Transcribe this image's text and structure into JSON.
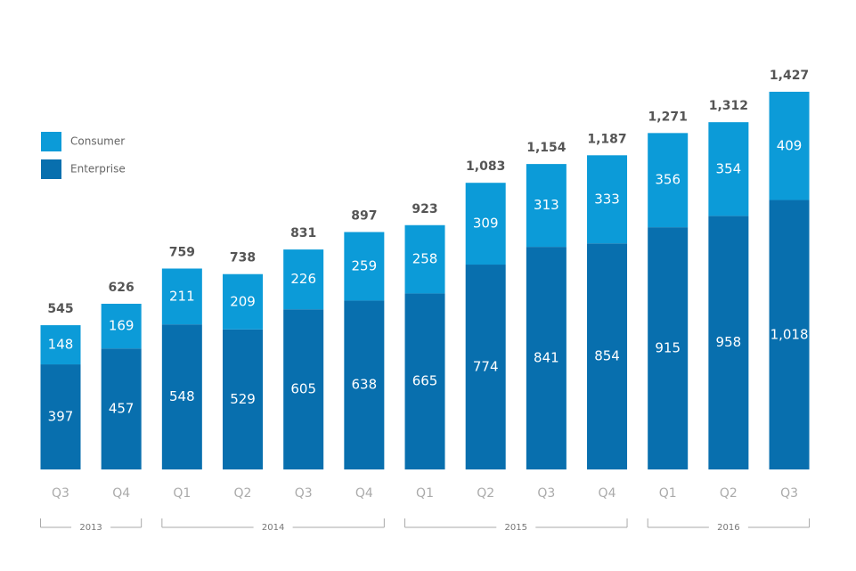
{
  "chart_data": {
    "type": "stacked-bar",
    "categories": [
      "Q3",
      "Q4",
      "Q1",
      "Q2",
      "Q3",
      "Q4",
      "Q1",
      "Q2",
      "Q3",
      "Q4",
      "Q1",
      "Q2",
      "Q3"
    ],
    "category_groups": [
      {
        "label": "2013",
        "span": 2
      },
      {
        "label": "2014",
        "span": 4
      },
      {
        "label": "2015",
        "span": 4
      },
      {
        "label": "2016",
        "span": 3
      }
    ],
    "series": [
      {
        "name": "Enterprise",
        "color": "#086fae",
        "values": [
          397,
          457,
          548,
          529,
          605,
          638,
          665,
          774,
          841,
          854,
          915,
          958,
          1018
        ],
        "value_labels": [
          "397",
          "457",
          "548",
          "529",
          "605",
          "638",
          "665",
          "774",
          "841",
          "854",
          "915",
          "958",
          "1,018"
        ]
      },
      {
        "name": "Consumer",
        "color": "#0c9bd8",
        "values": [
          148,
          169,
          211,
          209,
          226,
          259,
          258,
          309,
          313,
          333,
          356,
          354,
          409
        ]
      }
    ],
    "totals": [
      545,
      626,
      759,
      738,
      831,
      897,
      923,
      1083,
      1154,
      1187,
      1271,
      1312,
      1427
    ],
    "total_labels": [
      "545",
      "626",
      "759",
      "738",
      "831",
      "897",
      "923",
      "1,083",
      "1,154",
      "1,187",
      "1,271",
      "1,312",
      "1,427"
    ],
    "legend": "top-left"
  }
}
